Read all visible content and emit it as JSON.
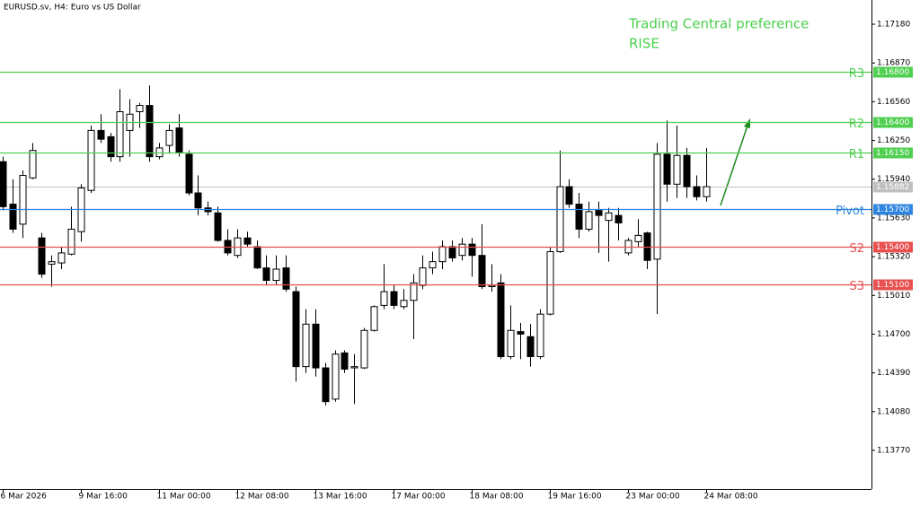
{
  "chart_data": {
    "type": "candlestick",
    "title": "EURUSD.sv, H4:  Euro vs US Dollar",
    "annotation": [
      "Trading Central preference",
      "RISE"
    ],
    "annotation_color": "#4cd04c",
    "categories": [
      "6 Mar 2026",
      null,
      null,
      null,
      null,
      null,
      null,
      null,
      "9 Mar 16:00",
      null,
      null,
      null,
      null,
      null,
      null,
      null,
      "11 Mar 00:00",
      null,
      null,
      null,
      null,
      null,
      null,
      null,
      "12 Mar 08:00",
      null,
      null,
      null,
      null,
      null,
      null,
      null,
      "13 Mar 16:00",
      null,
      null,
      null,
      null,
      null,
      null,
      null,
      "17 Mar 00:00",
      null,
      null,
      null,
      null,
      null,
      null,
      null,
      "18 Mar 08:00",
      null,
      null,
      null,
      null,
      null,
      null,
      null,
      "19 Mar 16:00",
      null,
      null,
      null,
      null,
      null,
      null,
      null,
      "23 Mar 00:00",
      null,
      null,
      null,
      null,
      null,
      null,
      null,
      "24 Mar 08:00"
    ],
    "open": [
      1.1608,
      1.1574,
      1.1558,
      1.1595,
      1.1547,
      1.1526,
      1.1527,
      1.1534,
      1.1552,
      1.1585,
      1.1633,
      1.1628,
      1.1612,
      1.1633,
      1.1648,
      1.1653,
      1.1612,
      1.1621,
      1.1635,
      1.1614,
      1.1583,
      1.1571,
      1.1567,
      1.1545,
      1.1533,
      1.1547,
      1.154,
      1.1523,
      1.1513,
      1.1523,
      1.1504,
      1.1444,
      1.1478,
      1.1443,
      1.1418,
      1.1455,
      1.1443,
      1.1443,
      1.1473,
      1.1493,
      1.1504,
      1.1492,
      1.1497,
      1.1509,
      1.1523,
      1.1528,
      1.154,
      1.1533,
      1.1542,
      1.1533,
      1.1508,
      1.1511,
      1.1452,
      1.1472,
      1.1468,
      1.1452,
      1.1486,
      1.1536,
      1.1588,
      1.1574,
      1.1554,
      1.1569,
      1.1561,
      1.1565,
      1.1535,
      1.1544,
      1.1551,
      1.153,
      1.1614,
      1.159,
      1.1613,
      1.1588,
      1.158
    ],
    "high": [
      1.1612,
      1.1594,
      1.1601,
      1.1623,
      1.1551,
      1.1533,
      1.154,
      1.1572,
      1.159,
      1.1637,
      1.1646,
      1.1631,
      1.1666,
      1.1658,
      1.1655,
      1.1669,
      1.1623,
      1.1638,
      1.1646,
      1.1617,
      1.1597,
      1.1576,
      1.1572,
      1.1554,
      1.1554,
      1.1552,
      1.1545,
      1.1533,
      1.1533,
      1.1533,
      1.1508,
      1.149,
      1.149,
      1.1447,
      1.1457,
      1.1457,
      1.1454,
      1.1475,
      1.1493,
      1.1526,
      1.1509,
      1.1506,
      1.1518,
      1.1533,
      1.1536,
      1.1545,
      1.1545,
      1.1547,
      1.1547,
      1.1558,
      1.1526,
      1.1518,
      1.1493,
      1.1479,
      1.1478,
      1.149,
      1.154,
      1.1617,
      1.1594,
      1.1583,
      1.1576,
      1.1576,
      1.1571,
      1.1571,
      1.1547,
      1.1562,
      1.1552,
      1.1623,
      1.1641,
      1.1637,
      1.1619,
      1.1597,
      1.1619
    ],
    "low": [
      1.1569,
      1.1551,
      1.1547,
      1.1594,
      1.1515,
      1.1508,
      1.1522,
      1.1533,
      1.1544,
      1.1583,
      1.1623,
      1.1608,
      1.1608,
      1.1612,
      1.1635,
      1.1608,
      1.161,
      1.1615,
      1.1612,
      1.1581,
      1.1565,
      1.1565,
      1.1544,
      1.1533,
      1.1531,
      1.154,
      1.1522,
      1.1509,
      1.1509,
      1.1504,
      1.1432,
      1.1439,
      1.1436,
      1.1413,
      1.1416,
      1.1439,
      1.1414,
      1.1442,
      1.1472,
      1.149,
      1.149,
      1.149,
      1.1466,
      1.1506,
      1.1518,
      1.1522,
      1.1528,
      1.1529,
      1.1516,
      1.1506,
      1.1504,
      1.145,
      1.145,
      1.145,
      1.1444,
      1.145,
      1.1485,
      1.1535,
      1.1571,
      1.1547,
      1.1552,
      1.1535,
      1.1528,
      1.1545,
      1.1533,
      1.154,
      1.1522,
      1.1486,
      1.1576,
      1.1579,
      1.1579,
      1.1577,
      1.1576
    ],
    "close": [
      1.1572,
      1.1554,
      1.1597,
      1.1617,
      1.1518,
      1.1528,
      1.1535,
      1.1554,
      1.1587,
      1.1633,
      1.1626,
      1.1612,
      1.1648,
      1.1646,
      1.1653,
      1.1612,
      1.1619,
      1.1633,
      1.1615,
      1.1583,
      1.1571,
      1.1568,
      1.1545,
      1.1535,
      1.1547,
      1.1542,
      1.1523,
      1.1513,
      1.1522,
      1.1506,
      1.1444,
      1.1478,
      1.1443,
      1.1416,
      1.1454,
      1.1442,
      1.1444,
      1.1473,
      1.1492,
      1.1504,
      1.1493,
      1.1497,
      1.1511,
      1.1523,
      1.1528,
      1.154,
      1.1531,
      1.1542,
      1.1533,
      1.1508,
      1.1509,
      1.1452,
      1.1473,
      1.147,
      1.1452,
      1.1486,
      1.1536,
      1.1588,
      1.1574,
      1.1554,
      1.1568,
      1.1565,
      1.1567,
      1.1559,
      1.1545,
      1.1549,
      1.1529,
      1.1614,
      1.159,
      1.1613,
      1.1588,
      1.158,
      1.1588
    ],
    "levels": [
      {
        "name": "R3",
        "value": 1.168,
        "label": "1.16800",
        "color": "#4fcf4f"
      },
      {
        "name": "R2",
        "value": 1.164,
        "label": "1.16400",
        "color": "#4fcf4f"
      },
      {
        "name": "R1",
        "value": 1.1615,
        "label": "1.16150",
        "color": "#4fcf4f"
      },
      {
        "name": "Pivot",
        "value": 1.157,
        "label": "1.15700",
        "color": "#2f86e0"
      },
      {
        "name": "S2",
        "value": 1.154,
        "label": "1.15400",
        "color": "#e84f4f"
      },
      {
        "name": "S3",
        "value": 1.151,
        "label": "1.15100",
        "color": "#e84f4f"
      }
    ],
    "current_price": {
      "value": 1.15882,
      "label": "1.15882",
      "color": "#c0c0c0"
    },
    "ylim": [
      1.13461,
      1.17374
    ],
    "yticks": [
      {
        "value": 1.1718,
        "label": "1.17180"
      },
      {
        "value": 1.1687,
        "label": "1.16870"
      },
      {
        "value": 1.1656,
        "label": "1.16560"
      },
      {
        "value": 1.1625,
        "label": "1.16250"
      },
      {
        "value": 1.1594,
        "label": "1.15940"
      },
      {
        "value": 1.1563,
        "label": "1.15630"
      },
      {
        "value": 1.1532,
        "label": "1.15320"
      },
      {
        "value": 1.1501,
        "label": "1.15010"
      },
      {
        "value": 1.147,
        "label": "1.14700"
      },
      {
        "value": 1.1439,
        "label": "1.14390"
      },
      {
        "value": 1.1408,
        "label": "1.14080"
      },
      {
        "value": 1.1377,
        "label": "1.13770"
      }
    ]
  }
}
